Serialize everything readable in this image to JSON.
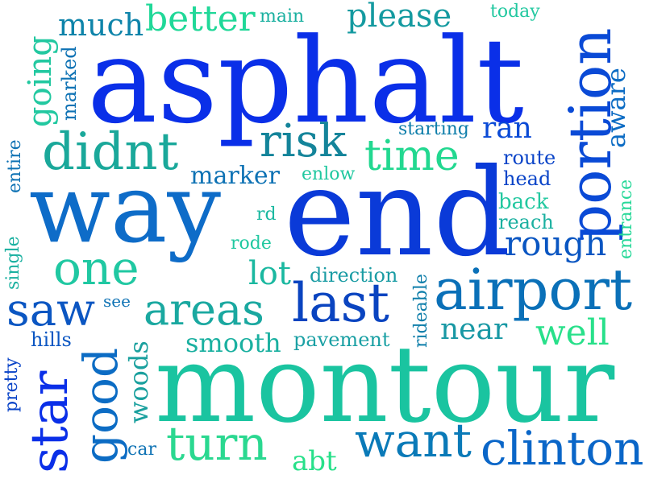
{
  "words": [
    {
      "text": "asphalt",
      "color": "#0a2fe8"
    },
    {
      "text": "end",
      "color": "#0a3ad8"
    },
    {
      "text": "way",
      "color": "#0e6cc8"
    },
    {
      "text": "montour",
      "color": "#1ac4a0"
    },
    {
      "text": "portion",
      "color": "#0a4ad6"
    },
    {
      "text": "airport",
      "color": "#0a70b8"
    },
    {
      "text": "didnt",
      "color": "#1aa89a"
    },
    {
      "text": "risk",
      "color": "#14849a"
    },
    {
      "text": "time",
      "color": "#22d890"
    },
    {
      "text": "one",
      "color": "#20c8a2"
    },
    {
      "text": "last",
      "color": "#0a44c0"
    },
    {
      "text": "areas",
      "color": "#1aa8a0"
    },
    {
      "text": "saw",
      "color": "#0b56c2"
    },
    {
      "text": "star",
      "color": "#0a2fe8"
    },
    {
      "text": "good",
      "color": "#0c6cc4"
    },
    {
      "text": "turn",
      "color": "#2ad890"
    },
    {
      "text": "want",
      "color": "#0a7ab8"
    },
    {
      "text": "clinton",
      "color": "#0a66c8"
    },
    {
      "text": "better",
      "color": "#20d898"
    },
    {
      "text": "much",
      "color": "#0e84aa"
    },
    {
      "text": "please",
      "color": "#149aa0"
    },
    {
      "text": "going",
      "color": "#22c8a0"
    },
    {
      "text": "rough",
      "color": "#0a56c2"
    },
    {
      "text": "well",
      "color": "#28e08a"
    },
    {
      "text": "near",
      "color": "#1898a4"
    },
    {
      "text": "aware",
      "color": "#0c6cc4"
    },
    {
      "text": "lot",
      "color": "#1ab8a0"
    },
    {
      "text": "smooth",
      "color": "#1ab0a0"
    },
    {
      "text": "woods",
      "color": "#1aa09e"
    },
    {
      "text": "marker",
      "color": "#0e72b4"
    },
    {
      "text": "ran",
      "color": "#0a4ad6"
    },
    {
      "text": "main",
      "color": "#1ab0a0"
    },
    {
      "text": "today",
      "color": "#22c8a0"
    },
    {
      "text": "marked",
      "color": "#0e72b4"
    },
    {
      "text": "starting",
      "color": "#0e7eaa"
    },
    {
      "text": "route",
      "color": "#0a44c8"
    },
    {
      "text": "head",
      "color": "#0a44c8"
    },
    {
      "text": "back",
      "color": "#22c8a0"
    },
    {
      "text": "reach",
      "color": "#1ab0a0"
    },
    {
      "text": "entrance",
      "color": "#26d898"
    },
    {
      "text": "enlow",
      "color": "#20c8a0"
    },
    {
      "text": "rd",
      "color": "#1ab8a0"
    },
    {
      "text": "rode",
      "color": "#20c8a0"
    },
    {
      "text": "direction",
      "color": "#1a9ca4"
    },
    {
      "text": "rideable",
      "color": "#0e7eaa"
    },
    {
      "text": "pavement",
      "color": "#1aa0a4"
    },
    {
      "text": "see",
      "color": "#0e72b4"
    },
    {
      "text": "hills",
      "color": "#0b56c2"
    },
    {
      "text": "pretty",
      "color": "#0a44c8"
    },
    {
      "text": "single",
      "color": "#1ab0a0"
    },
    {
      "text": "entire",
      "color": "#0e72b4"
    },
    {
      "text": "car",
      "color": "#0e72b4"
    },
    {
      "text": "abt",
      "color": "#28e08a"
    }
  ]
}
